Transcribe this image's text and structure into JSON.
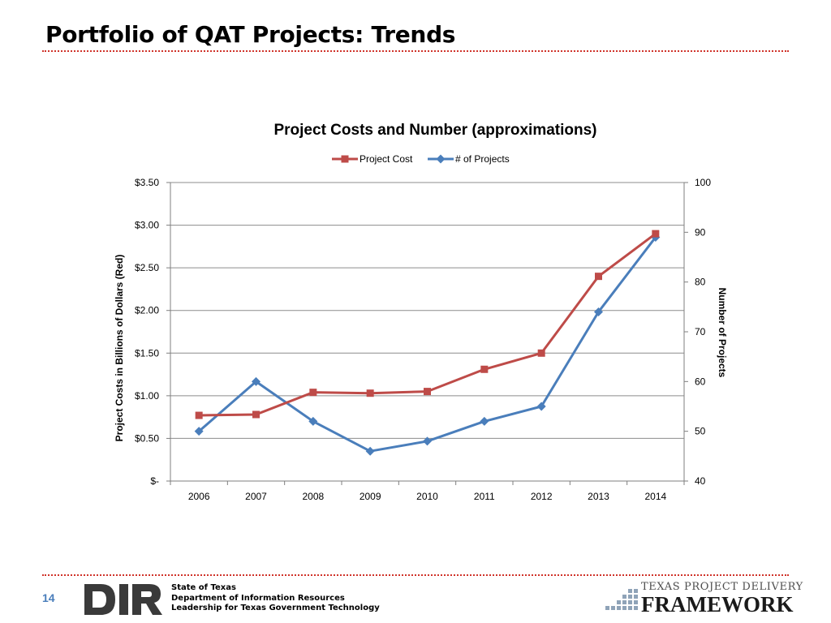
{
  "slide": {
    "title": "Portfolio of QAT Projects: Trends",
    "page_number": "14"
  },
  "chart_data": {
    "type": "line",
    "title": "Project Costs and Number (approximations)",
    "categories": [
      "2006",
      "2007",
      "2008",
      "2009",
      "2010",
      "2011",
      "2012",
      "2013",
      "2014"
    ],
    "series": [
      {
        "name": "Project Cost",
        "axis": "left",
        "color": "#be4b48",
        "marker": "square",
        "values": [
          0.77,
          0.78,
          1.04,
          1.03,
          1.05,
          1.31,
          1.5,
          2.4,
          2.9
        ]
      },
      {
        "name": "# of Projects",
        "axis": "right",
        "color": "#4a7ebb",
        "marker": "diamond",
        "values": [
          50,
          60,
          52,
          46,
          48,
          52,
          55,
          74,
          89
        ]
      }
    ],
    "left_axis": {
      "label": "Project Costs in Billions of Dollars (Red)",
      "min": 0,
      "max": 3.5,
      "step": 0.5,
      "tick_labels": [
        "$-",
        "$0.50",
        "$1.00",
        "$1.50",
        "$2.00",
        "$2.50",
        "$3.00",
        "$3.50"
      ]
    },
    "right_axis": {
      "label": "Number of Projects",
      "min": 40,
      "max": 100,
      "step": 10,
      "tick_labels": [
        "40",
        "50",
        "60",
        "70",
        "80",
        "90",
        "100"
      ]
    },
    "grid": true,
    "legend_position": "top-center"
  },
  "footer": {
    "org_lines": [
      "State of Texas",
      "Department of Information Resources",
      "Leadership for Texas Government Technology"
    ],
    "dir_logo_text": "DIR",
    "framework_logo": {
      "top_text": "TEXAS PROJECT DELIVERY",
      "main_text": "FRAMEWORK"
    }
  },
  "colors": {
    "title_rule": "#d0332a",
    "cost_series": "#be4b48",
    "projects_series": "#4a7ebb",
    "gridline": "#8c8c8c"
  }
}
